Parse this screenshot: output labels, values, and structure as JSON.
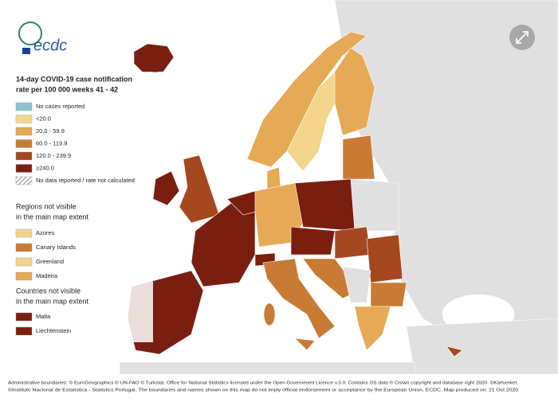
{
  "logo": {
    "text": "ecdc"
  },
  "legend": {
    "title_lines": [
      "14-day COVID-19 case notification",
      "rate per 100 000 weeks 41 - 42"
    ],
    "items": [
      {
        "label": "No cases reported",
        "color": "#8fc3cf"
      },
      {
        "label": "<20.0",
        "color": "#f3d68b"
      },
      {
        "label": "20.0 - 59.9",
        "color": "#e6a955"
      },
      {
        "label": "60.0 - 119.9",
        "color": "#c97a34"
      },
      {
        "label": "120.0 - 239.9",
        "color": "#a5471f"
      },
      {
        "label": "≥240.0",
        "color": "#7a1e10"
      },
      {
        "label": "No data reported / rate not calculated",
        "color": "hatch"
      }
    ]
  },
  "regions": {
    "heading_lines": [
      "Regions not visible",
      "in the main map extent"
    ],
    "items": [
      {
        "label": "Azores",
        "color": "#f3d68b"
      },
      {
        "label": "Canary Islands",
        "color": "#c97a34"
      },
      {
        "label": "Greenland",
        "color": "#f3d68b"
      },
      {
        "label": "Madeira",
        "color": "#e6a955"
      }
    ]
  },
  "countries": {
    "heading_lines": [
      "Countries not visible",
      "in the main map extent"
    ],
    "items": [
      {
        "label": "Malta",
        "color": "#7a1e10"
      },
      {
        "label": "Liechtenstein",
        "color": "#7a1e10"
      }
    ]
  },
  "footer": [
    "Administrative boundaries: © EuroGeographics © UN-FAO © Turkstat. Office for National Statistics licensed under the Open Government Licence v.3.0. Contains OS data © Crown copyright and database right 2020. ©Kartverket.",
    "©Instituto Nacional de Estatística - Statistics Portugal. The boundaries and names shown on this map do not imply official endorsement or acceptance by the European Union. ECDC. Map produced on: 21 Oct 2020"
  ]
}
